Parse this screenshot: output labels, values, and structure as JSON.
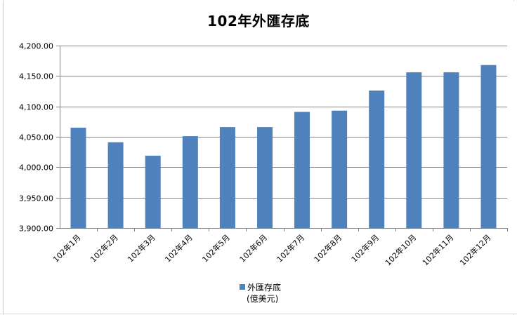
{
  "chart_data": {
    "type": "bar",
    "title": "102年外匯存底",
    "categories": [
      "102年1月",
      "102年2月",
      "102年3月",
      "102年4月",
      "102年5月",
      "102年6月",
      "102年7月",
      "102年8月",
      "102年9月",
      "102年10月",
      "102年11月",
      "102年12月"
    ],
    "series": [
      {
        "name": "外匯存底",
        "unit": "(億美元)",
        "color": "#4f81bd",
        "values": [
          4065.0,
          4041.0,
          4019.0,
          4051.0,
          4066.0,
          4066.0,
          4091.0,
          4093.0,
          4126.0,
          4156.0,
          4156.0,
          4168.0
        ]
      }
    ],
    "ylim": [
      3900,
      4200
    ],
    "yticks": [
      "3,900.00",
      "3,950.00",
      "4,000.00",
      "4,050.00",
      "4,100.00",
      "4,150.00",
      "4,200.00"
    ],
    "ytick_values": [
      3900,
      3950,
      4000,
      4050,
      4100,
      4150,
      4200
    ],
    "grid": true,
    "legend_position": "bottom"
  }
}
